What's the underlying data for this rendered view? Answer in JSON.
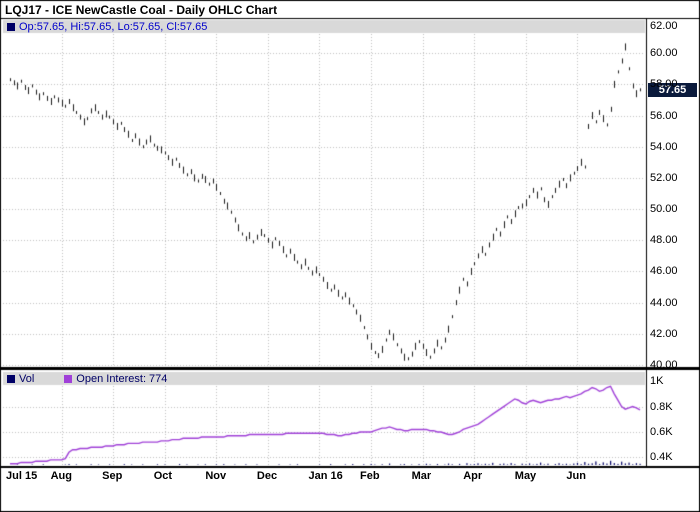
{
  "title": "LQJ17 - ICE NewCastle Coal - Daily OHLC Chart",
  "legends": {
    "price": "Op:57.65, Hi:57.65, Lo:57.65, Cl:57.65",
    "volume": "Vol",
    "open_interest": "Open Interest: 774"
  },
  "price_badge": "57.65",
  "colors": {
    "legend_text": "#0000cc",
    "volume_legend_text": "#000066",
    "navy_swatch": "#000066",
    "oi_purple": "#a040d8",
    "badge_bg": "#0a1a3c",
    "grid": "#bfbfbf",
    "bar": "#1a1a1a",
    "legend_strip_bg": "#d9d9d9"
  },
  "chart_data": {
    "type": "ohlc",
    "title": "LQJ17 - ICE NewCastle Coal - Daily OHLC Chart",
    "grid": true,
    "legend_position": "top-left",
    "x_labels": [
      "Jul 15",
      "Aug",
      "Sep",
      "Oct",
      "Nov",
      "Dec",
      "Jan 16",
      "Feb",
      "Mar",
      "Apr",
      "May",
      "Jun"
    ],
    "points_per_month": [
      14,
      14,
      14,
      14,
      14,
      14,
      14,
      14,
      14,
      14,
      14,
      18
    ],
    "price": {
      "ylim": [
        40,
        62
      ],
      "yticks": [
        62,
        60,
        58,
        56,
        54,
        52,
        50,
        48,
        46,
        44,
        42,
        40
      ],
      "ytick_labels": [
        "62.00",
        "60.00",
        "58.00",
        "56.00",
        "54.00",
        "52.00",
        "50.00",
        "48.00",
        "46.00",
        "44.00",
        "42.00",
        "40.00"
      ],
      "last_quote": {
        "open": 57.65,
        "high": 57.65,
        "low": 57.65,
        "close": 57.65
      },
      "close": [
        58.3,
        58.1,
        57.9,
        58.2,
        57.8,
        57.6,
        57.9,
        57.5,
        57.2,
        57.4,
        57.1,
        56.9,
        57.2,
        57.0,
        56.8,
        56.6,
        56.9,
        56.5,
        56.2,
        55.9,
        55.6,
        55.8,
        56.3,
        56.5,
        56.2,
        55.9,
        56.1,
        55.9,
        55.6,
        55.3,
        55.5,
        55.1,
        54.8,
        54.4,
        54.7,
        54.3,
        54.0,
        54.3,
        54.5,
        54.1,
        53.9,
        53.8,
        53.6,
        53.3,
        53.0,
        53.2,
        52.8,
        52.5,
        52.2,
        52.4,
        52.0,
        51.8,
        52.1,
        51.9,
        51.6,
        51.8,
        51.4,
        51.0,
        50.5,
        50.2,
        49.8,
        49.3,
        48.8,
        48.4,
        48.1,
        48.3,
        47.9,
        48.2,
        48.5,
        48.3,
        48.0,
        47.7,
        48.1,
        47.8,
        47.4,
        47.0,
        47.3,
        46.9,
        46.6,
        46.3,
        46.6,
        46.2,
        45.9,
        46.1,
        45.8,
        45.5,
        45.1,
        44.8,
        45.0,
        44.6,
        44.3,
        44.5,
        44.1,
        43.8,
        43.4,
        43.0,
        42.4,
        41.8,
        41.2,
        40.8,
        40.6,
        41.0,
        41.6,
        42.1,
        41.8,
        41.3,
        40.9,
        40.5,
        40.4,
        40.7,
        41.2,
        41.5,
        41.2,
        40.8,
        40.5,
        40.9,
        41.4,
        41.1,
        41.6,
        42.3,
        43.1,
        44.0,
        44.8,
        45.5,
        45.2,
        46.0,
        46.5,
        47.0,
        47.4,
        47.1,
        47.7,
        48.2,
        48.7,
        48.4,
        49.0,
        49.5,
        49.2,
        49.7,
        50.1,
        50.2,
        50.4,
        50.8,
        51.2,
        50.9,
        51.3,
        50.6,
        50.3,
        50.8,
        51.2,
        51.6,
        51.9,
        51.5,
        52.0,
        52.3,
        52.6,
        53.0,
        52.7,
        55.3,
        56.0,
        55.6,
        56.2,
        55.8,
        55.4,
        56.4,
        58.0,
        58.8,
        59.5,
        60.4,
        59.0,
        57.9,
        57.4,
        57.65
      ]
    },
    "volume_oi": {
      "ylim_k": [
        0.34,
        1.08
      ],
      "yticks_k": [
        1.0,
        0.8,
        0.6,
        0.4
      ],
      "ytick_labels": [
        "1K",
        "0.8K",
        "0.6K",
        "0.4K"
      ],
      "open_interest_last": 774,
      "open_interest_k": [
        0.35,
        0.35,
        0.35,
        0.36,
        0.36,
        0.36,
        0.36,
        0.37,
        0.37,
        0.37,
        0.37,
        0.38,
        0.38,
        0.38,
        0.38,
        0.39,
        0.44,
        0.46,
        0.46,
        0.47,
        0.47,
        0.47,
        0.48,
        0.48,
        0.48,
        0.48,
        0.49,
        0.49,
        0.49,
        0.5,
        0.5,
        0.5,
        0.51,
        0.51,
        0.51,
        0.51,
        0.52,
        0.52,
        0.52,
        0.52,
        0.52,
        0.53,
        0.53,
        0.53,
        0.54,
        0.54,
        0.54,
        0.55,
        0.55,
        0.55,
        0.55,
        0.55,
        0.56,
        0.56,
        0.56,
        0.56,
        0.56,
        0.56,
        0.56,
        0.57,
        0.57,
        0.57,
        0.57,
        0.57,
        0.57,
        0.58,
        0.58,
        0.58,
        0.58,
        0.58,
        0.58,
        0.58,
        0.58,
        0.58,
        0.58,
        0.59,
        0.59,
        0.59,
        0.59,
        0.59,
        0.59,
        0.59,
        0.59,
        0.59,
        0.59,
        0.59,
        0.58,
        0.58,
        0.58,
        0.57,
        0.57,
        0.58,
        0.58,
        0.59,
        0.59,
        0.6,
        0.6,
        0.6,
        0.6,
        0.61,
        0.62,
        0.63,
        0.63,
        0.64,
        0.63,
        0.62,
        0.62,
        0.61,
        0.61,
        0.62,
        0.62,
        0.62,
        0.62,
        0.62,
        0.61,
        0.61,
        0.6,
        0.6,
        0.59,
        0.58,
        0.58,
        0.59,
        0.6,
        0.62,
        0.63,
        0.64,
        0.65,
        0.66,
        0.68,
        0.7,
        0.72,
        0.74,
        0.76,
        0.78,
        0.8,
        0.82,
        0.84,
        0.86,
        0.85,
        0.83,
        0.82,
        0.84,
        0.85,
        0.84,
        0.83,
        0.84,
        0.85,
        0.85,
        0.86,
        0.86,
        0.87,
        0.88,
        0.87,
        0.88,
        0.89,
        0.9,
        0.92,
        0.93,
        0.95,
        0.94,
        0.92,
        0.93,
        0.95,
        0.96,
        0.9,
        0.85,
        0.8,
        0.78,
        0.79,
        0.8,
        0.79,
        0.774
      ],
      "volume": [
        3,
        0,
        5,
        2,
        0,
        1,
        4,
        0,
        2,
        6,
        1,
        0,
        3,
        2,
        0,
        4,
        8,
        2,
        5,
        1,
        0,
        3,
        6,
        2,
        4,
        1,
        0,
        5,
        2,
        0,
        3,
        7,
        1,
        4,
        0,
        2,
        5,
        1,
        3,
        0,
        6,
        2,
        4,
        1,
        0,
        3,
        8,
        2,
        5,
        0,
        1,
        4,
        2,
        6,
        0,
        3,
        5,
        2,
        7,
        1,
        0,
        4,
        3,
        0,
        6,
        2,
        1,
        5,
        0,
        2,
        1,
        3,
        0,
        5,
        2,
        0,
        4,
        1,
        6,
        0,
        2,
        3,
        0,
        1,
        4,
        0,
        2,
        7,
        3,
        1,
        0,
        5,
        2,
        8,
        1,
        3,
        6,
        2,
        9,
        4,
        2,
        6,
        1,
        12,
        3,
        0,
        5,
        8,
        2,
        4,
        1,
        7,
        3,
        10,
        5,
        2,
        8,
        1,
        4,
        12,
        6,
        2,
        9,
        3,
        15,
        5,
        8,
        14,
        4,
        10,
        6,
        18,
        3,
        9,
        12,
        5,
        16,
        7,
        2,
        11,
        6,
        13,
        4,
        9,
        20,
        5,
        11,
        3,
        8,
        15,
        6,
        10,
        4,
        12,
        18,
        7,
        25,
        10,
        14,
        30,
        8,
        22,
        12,
        35,
        16,
        9,
        28,
        13,
        20,
        6,
        15,
        10
      ]
    }
  }
}
